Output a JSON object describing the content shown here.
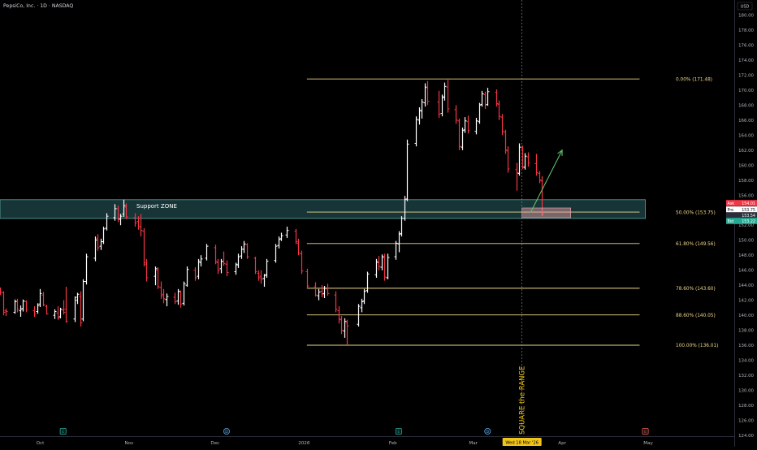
{
  "header": {
    "title": "PepsiCo, Inc. · 1D · NASDAQ"
  },
  "currency": "USD",
  "colors": {
    "background": "#000000",
    "up": "#ffffff",
    "down": "#f23645",
    "fib": "#f0d98a",
    "zone_fill": "#2a5f63",
    "zone_stroke": "#5fa8a8",
    "arrow": "#5fbf6a",
    "ask": "#f23645",
    "bid": "#22ab94",
    "highlight": "#f0c419",
    "projection_box": "#f2a6b0",
    "event_earn": "#26a69a",
    "event_div": "#5b9bd5",
    "event_other": "#ef5350"
  },
  "annotations": {
    "support_zone_label": "Support ZONE",
    "vertical_label": "SQUARE the RANGE"
  },
  "price_tags": [
    {
      "label": "Ask",
      "value": "154.01",
      "kind": "ask"
    },
    {
      "label": "Pre",
      "value": "153.75",
      "kind": "pre"
    },
    {
      "label": "",
      "value": "153.54",
      "kind": "last"
    },
    {
      "label": "Bid",
      "value": "153.22",
      "kind": "bid"
    }
  ],
  "date_highlight": "Wed 18 Mar '26",
  "event_markers": [
    {
      "date": "2025-10-09",
      "letter": "E",
      "kind": "earn"
    },
    {
      "date": "2025-12-05",
      "letter": "D",
      "kind": "div"
    },
    {
      "date": "2026-02-03",
      "letter": "E",
      "kind": "earn"
    },
    {
      "date": "2026-03-06",
      "letter": "D",
      "kind": "div"
    },
    {
      "date": "2026-04-30",
      "letter": "E",
      "kind": "other"
    }
  ],
  "chart_data": {
    "type": "ohlc",
    "y_axis": {
      "min": 124,
      "max": 182,
      "ticks": [
        "124.00",
        "126.00",
        "128.00",
        "130.00",
        "132.00",
        "134.00",
        "136.00",
        "138.00",
        "140.00",
        "142.00",
        "144.00",
        "146.00",
        "148.00",
        "150.00",
        "152.00",
        "154.00",
        "156.00",
        "158.00",
        "160.00",
        "162.00",
        "164.00",
        "166.00",
        "168.00",
        "170.00",
        "172.00",
        "174.00",
        "176.00",
        "178.00",
        "180.00"
      ]
    },
    "x_axis": {
      "start": "2025-09-17",
      "end": "2026-05-31",
      "ticks": [
        {
          "date": "2025-10-01",
          "label": "Oct"
        },
        {
          "date": "2025-11-01",
          "label": "Nov"
        },
        {
          "date": "2025-12-01",
          "label": "Dec"
        },
        {
          "date": "2026-01-01",
          "label": "2026"
        },
        {
          "date": "2026-02-01",
          "label": "Feb"
        },
        {
          "date": "2026-03-01",
          "label": "Mar"
        },
        {
          "date": "2026-04-01",
          "label": "Apr"
        },
        {
          "date": "2026-05-01",
          "label": "May"
        }
      ]
    },
    "support_zone": {
      "top": 155.4,
      "bottom": 152.9,
      "start": "2025-09-17",
      "end": "2026-04-30"
    },
    "fib_levels": [
      {
        "ratio": "0.00%",
        "price": 171.48,
        "label": "0.00% (171.48)"
      },
      {
        "ratio": "50.00%",
        "price": 153.75,
        "label": "50.00% (153.75)"
      },
      {
        "ratio": "61.80%",
        "price": 149.56,
        "label": "61.80% (149.56)"
      },
      {
        "ratio": "78.60%",
        "price": 143.6,
        "label": "78.60% (143.60)"
      },
      {
        "ratio": "88.60%",
        "price": 140.05,
        "label": "88.60% (140.05)"
      },
      {
        "ratio": "100.00%",
        "price": 136.01,
        "label": "100.00% (136.01)"
      }
    ],
    "fib_start": "2026-01-02",
    "fib_end": "2026-04-28",
    "projection_box": {
      "start": "2026-03-18",
      "end": "2026-04-04",
      "top": 154.3,
      "bottom": 153.0
    },
    "arrow": {
      "from_date": "2026-03-21",
      "from_price": 153.7,
      "to_date": "2026-04-01",
      "to_price": 162.0
    },
    "vertical_line_date": "2026-03-18",
    "series": [
      [
        "2025-09-17",
        143.5,
        143.7,
        142.7,
        143.1
      ],
      [
        "2025-09-18",
        143.0,
        143.2,
        140.0,
        140.4
      ],
      [
        "2025-09-19",
        140.6,
        140.9,
        139.9,
        140.5
      ],
      [
        "2025-09-22",
        140.4,
        142.1,
        140.2,
        141.8
      ],
      [
        "2025-09-23",
        141.9,
        142.2,
        140.4,
        140.8
      ],
      [
        "2025-09-24",
        140.6,
        141.3,
        139.8,
        140.8
      ],
      [
        "2025-09-25",
        140.9,
        142.1,
        140.5,
        141.9
      ],
      [
        "2025-09-26",
        141.8,
        142.0,
        140.4,
        140.7
      ],
      [
        "2025-09-29",
        140.6,
        141.2,
        139.8,
        140.2
      ],
      [
        "2025-09-30",
        140.5,
        141.6,
        140.2,
        141.3
      ],
      [
        "2025-10-01",
        141.5,
        143.5,
        141.1,
        142.9
      ],
      [
        "2025-10-02",
        142.7,
        143.1,
        141.2,
        141.4
      ],
      [
        "2025-10-03",
        141.2,
        141.4,
        140.1,
        140.2
      ],
      [
        "2025-10-06",
        140.0,
        140.8,
        139.5,
        140.5
      ],
      [
        "2025-10-07",
        140.3,
        141.2,
        139.4,
        139.6
      ],
      [
        "2025-10-08",
        139.8,
        141.0,
        139.6,
        140.8
      ],
      [
        "2025-10-09",
        140.7,
        142.0,
        140.1,
        140.4
      ],
      [
        "2025-10-10",
        140.8,
        143.8,
        139.0,
        139.2
      ],
      [
        "2025-10-13",
        139.5,
        142.5,
        139.1,
        142.4
      ],
      [
        "2025-10-14",
        142.0,
        143.0,
        141.5,
        142.8
      ],
      [
        "2025-10-15",
        142.5,
        143.2,
        138.5,
        139.0
      ],
      [
        "2025-10-16",
        139.5,
        144.8,
        139.2,
        144.5
      ],
      [
        "2025-10-17",
        144.5,
        148.2,
        144.1,
        147.8
      ],
      [
        "2025-10-20",
        147.6,
        150.5,
        147.2,
        150.0
      ],
      [
        "2025-10-21",
        150.2,
        150.8,
        148.6,
        149.0
      ],
      [
        "2025-10-22",
        149.2,
        150.2,
        148.7,
        149.8
      ],
      [
        "2025-10-23",
        149.8,
        151.8,
        149.5,
        151.5
      ],
      [
        "2025-10-24",
        151.6,
        153.6,
        151.3,
        153.2
      ],
      [
        "2025-10-27",
        153.0,
        154.8,
        152.6,
        154.2
      ],
      [
        "2025-10-28",
        154.2,
        154.6,
        152.4,
        152.8
      ],
      [
        "2025-10-29",
        152.8,
        153.5,
        152.0,
        153.2
      ],
      [
        "2025-10-30",
        153.5,
        155.4,
        153.1,
        154.6
      ],
      [
        "2025-10-31",
        154.4,
        154.9,
        152.8,
        153.1
      ],
      [
        "2025-11-03",
        153.0,
        153.6,
        151.8,
        152.3
      ],
      [
        "2025-11-04",
        152.5,
        153.2,
        151.4,
        151.8
      ],
      [
        "2025-11-05",
        151.8,
        153.5,
        150.5,
        151.3
      ],
      [
        "2025-11-06",
        151.2,
        151.6,
        146.5,
        147.0
      ],
      [
        "2025-11-07",
        146.8,
        147.5,
        144.5,
        145.0
      ],
      [
        "2025-11-10",
        145.2,
        146.5,
        144.0,
        146.2
      ],
      [
        "2025-11-11",
        146.0,
        146.4,
        143.5,
        143.8
      ],
      [
        "2025-11-12",
        143.7,
        144.5,
        142.2,
        142.6
      ],
      [
        "2025-11-13",
        142.8,
        143.5,
        141.6,
        142.2
      ],
      [
        "2025-11-14",
        142.1,
        142.9,
        141.2,
        142.5
      ],
      [
        "2025-11-17",
        142.4,
        143.0,
        141.5,
        141.8
      ],
      [
        "2025-11-18",
        141.9,
        143.5,
        141.4,
        143.2
      ],
      [
        "2025-11-19",
        143.1,
        143.3,
        141.0,
        141.5
      ],
      [
        "2025-11-20",
        141.6,
        144.5,
        141.3,
        144.2
      ],
      [
        "2025-11-21",
        144.0,
        146.5,
        143.8,
        146.1
      ],
      [
        "2025-11-24",
        146.0,
        146.4,
        144.6,
        145.0
      ],
      [
        "2025-11-25",
        145.2,
        147.5,
        144.8,
        147.2
      ],
      [
        "2025-11-26",
        147.0,
        148.0,
        146.5,
        147.5
      ],
      [
        "2025-11-28",
        147.6,
        149.5,
        147.3,
        149.2
      ],
      [
        "2025-12-01",
        149.0,
        149.4,
        146.8,
        147.2
      ],
      [
        "2025-12-02",
        147.0,
        147.5,
        145.5,
        146.0
      ],
      [
        "2025-12-03",
        146.2,
        147.5,
        145.6,
        147.2
      ],
      [
        "2025-12-04",
        147.1,
        148.5,
        146.6,
        146.9
      ],
      [
        "2025-12-05",
        146.8,
        147.3,
        145.2,
        145.7
      ],
      [
        "2025-12-08",
        145.8,
        147.0,
        145.4,
        146.8
      ],
      [
        "2025-12-09",
        146.7,
        148.2,
        146.3,
        147.8
      ],
      [
        "2025-12-10",
        147.9,
        149.2,
        147.5,
        148.8
      ],
      [
        "2025-12-11",
        148.8,
        149.9,
        148.3,
        149.5
      ],
      [
        "2025-12-12",
        149.4,
        149.6,
        147.5,
        147.8
      ],
      [
        "2025-12-15",
        147.6,
        147.8,
        145.5,
        145.8
      ],
      [
        "2025-12-16",
        145.6,
        146.0,
        144.6,
        145.0
      ],
      [
        "2025-12-17",
        145.2,
        146.0,
        144.2,
        144.8
      ],
      [
        "2025-12-18",
        144.9,
        145.5,
        143.8,
        145.3
      ],
      [
        "2025-12-19",
        145.4,
        147.5,
        145.0,
        147.2
      ],
      [
        "2025-12-22",
        147.3,
        149.5,
        147.0,
        149.2
      ],
      [
        "2025-12-23",
        149.3,
        150.5,
        148.9,
        150.1
      ],
      [
        "2025-12-24",
        150.2,
        151.0,
        149.9,
        150.6
      ],
      [
        "2025-12-26",
        150.7,
        151.8,
        150.3,
        151.3
      ],
      [
        "2025-12-29",
        151.2,
        151.5,
        149.5,
        149.8
      ],
      [
        "2025-12-30",
        149.6,
        150.2,
        148.0,
        148.3
      ],
      [
        "2025-12-31",
        148.2,
        148.6,
        145.5,
        145.9
      ],
      [
        "2026-01-02",
        145.8,
        146.2,
        143.6,
        143.9
      ],
      [
        "2026-01-05",
        143.8,
        144.4,
        142.5,
        142.7
      ],
      [
        "2026-01-06",
        142.6,
        143.5,
        142.0,
        143.1
      ],
      [
        "2026-01-07",
        143.2,
        144.0,
        142.4,
        142.8
      ],
      [
        "2026-01-08",
        142.9,
        143.9,
        142.3,
        143.6
      ],
      [
        "2026-01-09",
        143.5,
        144.2,
        142.6,
        142.9
      ],
      [
        "2026-01-12",
        142.7,
        143.2,
        140.4,
        140.8
      ],
      [
        "2026-01-13",
        140.6,
        141.2,
        138.9,
        139.5
      ],
      [
        "2026-01-14",
        139.4,
        139.9,
        137.5,
        138.0
      ],
      [
        "2026-01-15",
        137.9,
        139.6,
        137.0,
        139.2
      ],
      [
        "2026-01-16",
        139.0,
        139.4,
        136.0,
        138.6
      ],
      [
        "2026-01-20",
        138.8,
        141.5,
        138.5,
        141.2
      ],
      [
        "2026-01-21",
        141.0,
        142.2,
        140.4,
        141.8
      ],
      [
        "2026-01-22",
        141.9,
        143.5,
        141.5,
        143.2
      ],
      [
        "2026-01-23",
        143.3,
        145.8,
        143.0,
        145.5
      ],
      [
        "2026-01-26",
        145.4,
        147.5,
        145.0,
        147.1
      ],
      [
        "2026-01-27",
        147.0,
        147.9,
        146.0,
        146.5
      ],
      [
        "2026-01-28",
        146.4,
        148.1,
        146.0,
        147.8
      ],
      [
        "2026-01-29",
        147.7,
        148.2,
        144.6,
        145.1
      ],
      [
        "2026-01-30",
        145.0,
        148.2,
        144.8,
        147.7
      ],
      [
        "2026-02-02",
        147.8,
        149.9,
        147.4,
        149.6
      ],
      [
        "2026-02-03",
        149.5,
        151.2,
        148.4,
        150.8
      ],
      [
        "2026-02-04",
        150.9,
        153.2,
        150.5,
        152.9
      ],
      [
        "2026-02-05",
        152.9,
        155.9,
        152.6,
        155.4
      ],
      [
        "2026-02-06",
        155.5,
        163.4,
        155.2,
        162.8
      ],
      [
        "2026-02-09",
        162.9,
        166.5,
        162.5,
        166.1
      ],
      [
        "2026-02-10",
        166.0,
        167.7,
        165.4,
        167.3
      ],
      [
        "2026-02-11",
        167.2,
        168.8,
        166.2,
        168.4
      ],
      [
        "2026-02-12",
        168.3,
        170.9,
        167.8,
        170.4
      ],
      [
        "2026-02-13",
        170.3,
        171.2,
        168.0,
        168.5
      ],
      [
        "2026-02-17",
        168.4,
        169.9,
        166.3,
        166.8
      ],
      [
        "2026-02-18",
        166.9,
        169.4,
        166.5,
        169.0
      ],
      [
        "2026-02-19",
        169.1,
        171.0,
        168.6,
        170.5
      ],
      [
        "2026-02-20",
        170.4,
        171.5,
        167.0,
        167.5
      ],
      [
        "2026-02-23",
        167.4,
        168.0,
        165.5,
        166.0
      ],
      [
        "2026-02-24",
        165.9,
        166.2,
        162.0,
        162.5
      ],
      [
        "2026-02-25",
        162.4,
        165.0,
        162.0,
        164.6
      ],
      [
        "2026-02-26",
        164.7,
        166.4,
        164.3,
        165.9
      ],
      [
        "2026-02-27",
        165.8,
        166.6,
        164.2,
        164.6
      ],
      [
        "2026-03-02",
        164.5,
        166.3,
        164.1,
        165.9
      ],
      [
        "2026-03-03",
        165.8,
        168.3,
        165.5,
        168.0
      ],
      [
        "2026-03-04",
        168.1,
        169.9,
        167.8,
        169.5
      ],
      [
        "2026-03-05",
        169.4,
        169.8,
        167.5,
        168.0
      ],
      [
        "2026-03-06",
        168.1,
        170.3,
        167.9,
        169.8
      ],
      [
        "2026-03-09",
        169.7,
        170.1,
        167.8,
        168.2
      ],
      [
        "2026-03-10",
        168.1,
        168.6,
        166.0,
        166.5
      ],
      [
        "2026-03-11",
        166.4,
        166.8,
        164.0,
        164.5
      ],
      [
        "2026-03-12",
        164.4,
        164.7,
        161.5,
        162.0
      ],
      [
        "2026-03-13",
        161.9,
        162.5,
        159.0,
        159.5
      ],
      [
        "2026-03-16",
        159.4,
        160.3,
        156.6,
        159.0
      ],
      [
        "2026-03-17",
        158.9,
        162.9,
        158.6,
        162.4
      ],
      [
        "2026-03-18",
        162.3,
        162.6,
        159.5,
        159.8
      ],
      [
        "2026-03-19",
        159.7,
        161.6,
        159.4,
        161.2
      ],
      [
        "2026-03-20",
        161.1,
        161.7,
        159.8,
        160.3
      ],
      [
        "2026-03-23",
        160.2,
        161.5,
        158.6,
        159.0
      ],
      [
        "2026-03-24",
        158.9,
        159.2,
        157.6,
        158.0
      ],
      [
        "2026-03-25",
        157.9,
        158.5,
        153.2,
        153.5
      ]
    ]
  }
}
